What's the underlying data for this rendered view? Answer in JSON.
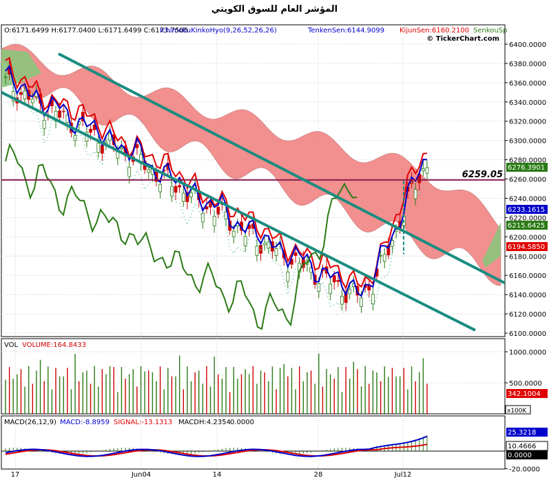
{
  "title": "المؤشر العام للسوق الكويتي",
  "watermark": "© TickerChart.com",
  "price_panel": {
    "header": {
      "ohlc": "O:6171.6499 H:6177.0400 L:6171.6499 C:6173.7505",
      "ichimoku_label": "IchimokuKinkoHyo(9,26,52,26,26)",
      "tenkan_label": "TenkenSen:6144.9099",
      "kijun_label": "KijunSen:6160.2100",
      "senkou_label": "SenkouSp"
    },
    "y_ticks": [
      "6400.0000",
      "6380.0000",
      "6360.0000",
      "6340.0000",
      "6320.0000",
      "6300.0000",
      "6280.0000",
      "6260.0000",
      "6240.0000",
      "6220.0000",
      "6200.0000",
      "6180.0000",
      "6160.0000",
      "6140.0000",
      "6120.0000",
      "6100.0000"
    ],
    "level_label": "6259.05",
    "value_tags": [
      "6276.3901",
      "6233.1615",
      "6215.6425",
      "6194.5850"
    ]
  },
  "volume_panel": {
    "label": "VOL",
    "value_label": "VOLUME:164.8433",
    "y_ticks": [
      "1000.0000",
      "500.0000"
    ],
    "value_tag": "342.1004",
    "scale": "x100K"
  },
  "macd_panel": {
    "label": "MACD(26,12,9)",
    "macd_label": "MACD:-8.8959",
    "signal_label": "SIGNAL:-13.1313",
    "hist_label": "MACDH:4.2354",
    "zero_label": "0.0000",
    "y_ticks": [
      "-20.0000"
    ],
    "value_tags": [
      "25.3218",
      "10.4666",
      "0.0000"
    ]
  },
  "x_labels": [
    "17",
    "Jun04",
    "14",
    "28",
    "Jul12"
  ],
  "colors": {
    "tenkan": "#0000cc",
    "kijun": "#e00000",
    "chikou": "#2a7a14",
    "cloud_bear": "#f07c7c",
    "cloud_bull": "#8cc47c",
    "trend": "#1a8c80",
    "level": "#8a2050",
    "up_candle": "#2a7a14",
    "down_candle": "#cc0000",
    "macd": "#0000cc",
    "signal": "#e00000"
  },
  "chart_data": [
    {
      "type": "candlestick",
      "title": "المؤشر العام للسوق الكويتي",
      "indicators": [
        "IchimokuKinkoHyo(9,26,52,26,26)"
      ],
      "last": {
        "open": 6171.6499,
        "high": 6177.04,
        "low": 6171.6499,
        "close": 6173.7505
      },
      "tenkan_sen": 6144.9099,
      "kijun_sen": 6160.21,
      "ylim": [
        6100,
        6400
      ],
      "horizontal_line": 6259.05,
      "close_series_approx": [
        6360,
        6352,
        6345,
        6338,
        6330,
        6325,
        6318,
        6312,
        6305,
        6298,
        6292,
        6285,
        6280,
        6270,
        6262,
        6255,
        6248,
        6240,
        6232,
        6226,
        6218,
        6210,
        6200,
        6195,
        6188,
        6180,
        6174,
        6168,
        6162,
        6155,
        6148,
        6142,
        6138,
        6150,
        6172,
        6200,
        6230,
        6255,
        6276
      ]
    },
    {
      "type": "bar",
      "title": "VOL",
      "series": [
        {
          "name": "VOLUME",
          "last": 164.8433
        }
      ],
      "ylim": [
        0,
        1100
      ],
      "scale": "x100K"
    },
    {
      "type": "line",
      "title": "MACD(26,12,9)",
      "series": [
        {
          "name": "MACD",
          "last": -8.8959
        },
        {
          "name": "SIGNAL",
          "last": -13.1313
        },
        {
          "name": "MACDH",
          "last": 4.2354
        }
      ],
      "ylim": [
        -25,
        30
      ]
    }
  ]
}
